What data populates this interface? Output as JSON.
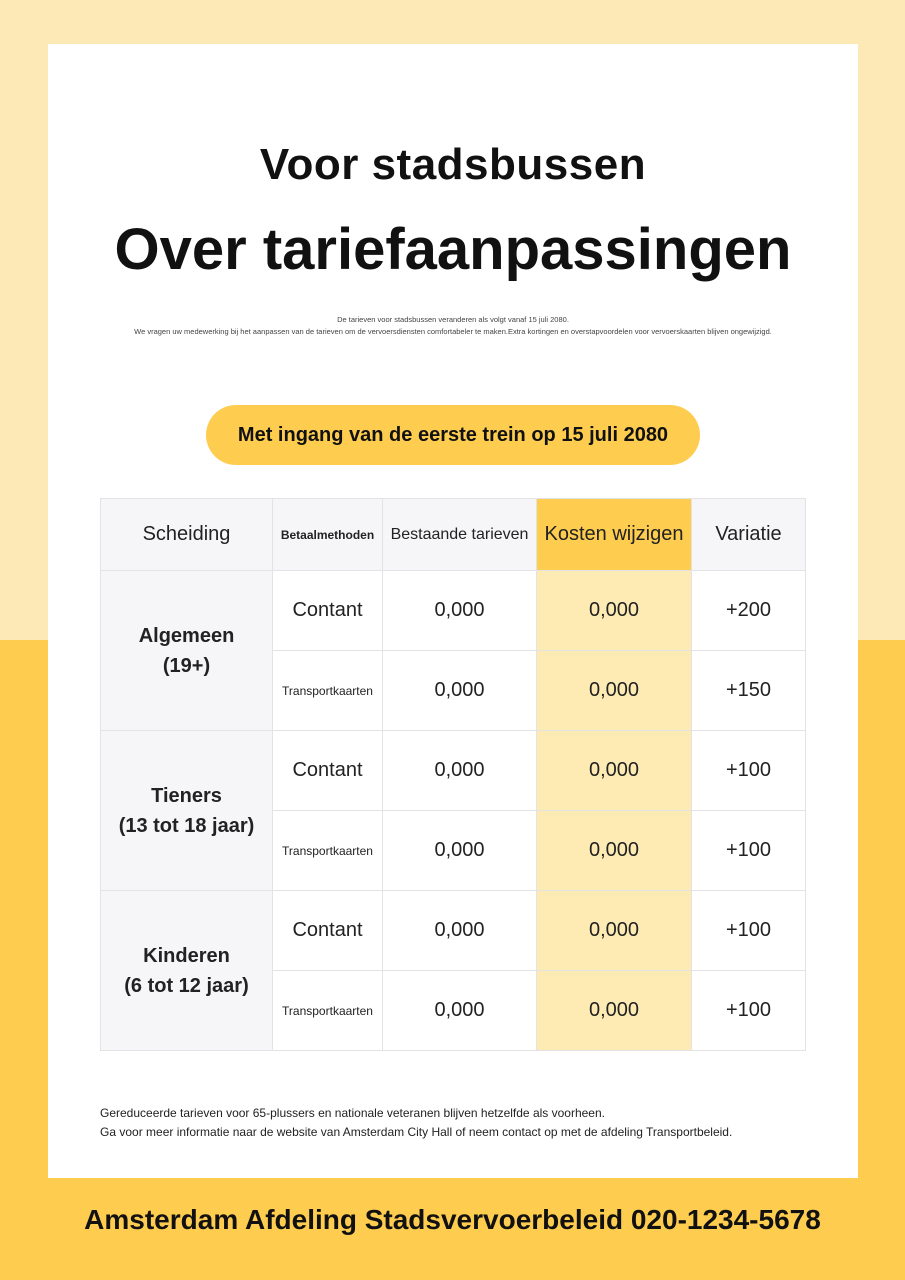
{
  "title": "Voor stadsbussen",
  "subtitle": "Over tariefaanpassingen",
  "intro": [
    "De tarieven voor stadsbussen veranderen als volgt vanaf 15 juli 2080.",
    "We vragen uw medewerking bij het aanpassen van de tarieven om de vervoersdiensten comfortabeler te maken.Extra kortingen en overstapvoordelen voor vervoerskaarten blijven ongewijzigd."
  ],
  "effective": "Met ingang van de eerste trein op 15 juli 2080",
  "table": {
    "headers": [
      "Scheiding",
      "Betaalmethoden",
      "Bestaande tarieven",
      "Kosten wijzigen",
      "Variatie"
    ],
    "groups": [
      {
        "name": [
          "Algemeen",
          "(19+)"
        ],
        "rows": [
          [
            "Contant",
            "0,000",
            "0,000",
            "+200"
          ],
          [
            "Transportkaarten",
            "0,000",
            "0,000",
            "+150"
          ]
        ]
      },
      {
        "name": [
          "Tieners",
          "(13 tot 18 jaar)"
        ],
        "rows": [
          [
            "Contant",
            "0,000",
            "0,000",
            "+100"
          ],
          [
            "Transportkaarten",
            "0,000",
            "0,000",
            "+100"
          ]
        ]
      },
      {
        "name": [
          "Kinderen",
          "(6 tot 12 jaar)"
        ],
        "rows": [
          [
            "Contant",
            "0,000",
            "0,000",
            "+100"
          ],
          [
            "Transportkaarten",
            "0,000",
            "0,000",
            "+100"
          ]
        ]
      }
    ]
  },
  "notes": [
    "Gereduceerde tarieven voor 65-plussers en nationale veteranen blijven hetzelfde als voorheen.",
    "Ga voor meer informatie naar de website van Amsterdam City Hall of neem contact op met de afdeling Transportbeleid."
  ],
  "footer": "Amsterdam Afdeling Stadsvervoerbeleid 020-1234-5678"
}
